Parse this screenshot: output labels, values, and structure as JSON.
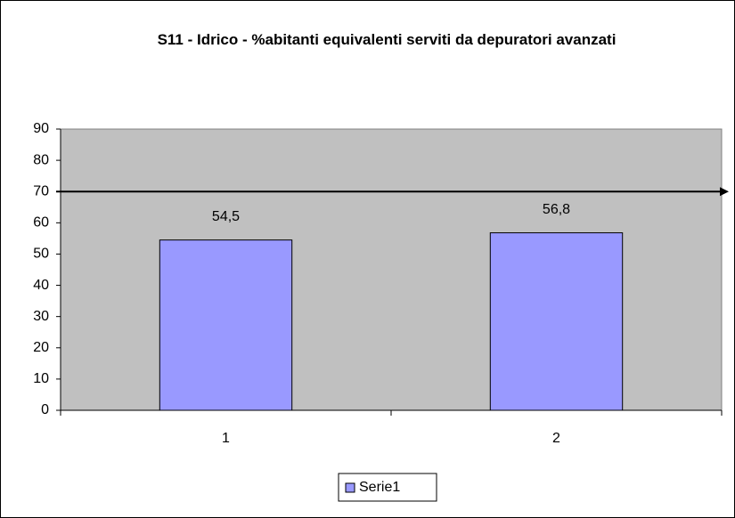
{
  "chart_data": {
    "type": "bar",
    "title": "S11 - Idrico - %abitanti equivalenti serviti da depuratori avanzati",
    "categories": [
      "1",
      "2"
    ],
    "series": [
      {
        "name": "Serie1",
        "color": "#9999ff",
        "values": [
          54.5,
          56.8
        ],
        "value_labels": [
          "54,5",
          "56,8"
        ]
      }
    ],
    "ylim": [
      0,
      90
    ],
    "yticks": [
      0,
      10,
      20,
      30,
      40,
      50,
      60,
      70,
      80,
      90
    ],
    "reference_line": 70,
    "legend": "bottom"
  }
}
